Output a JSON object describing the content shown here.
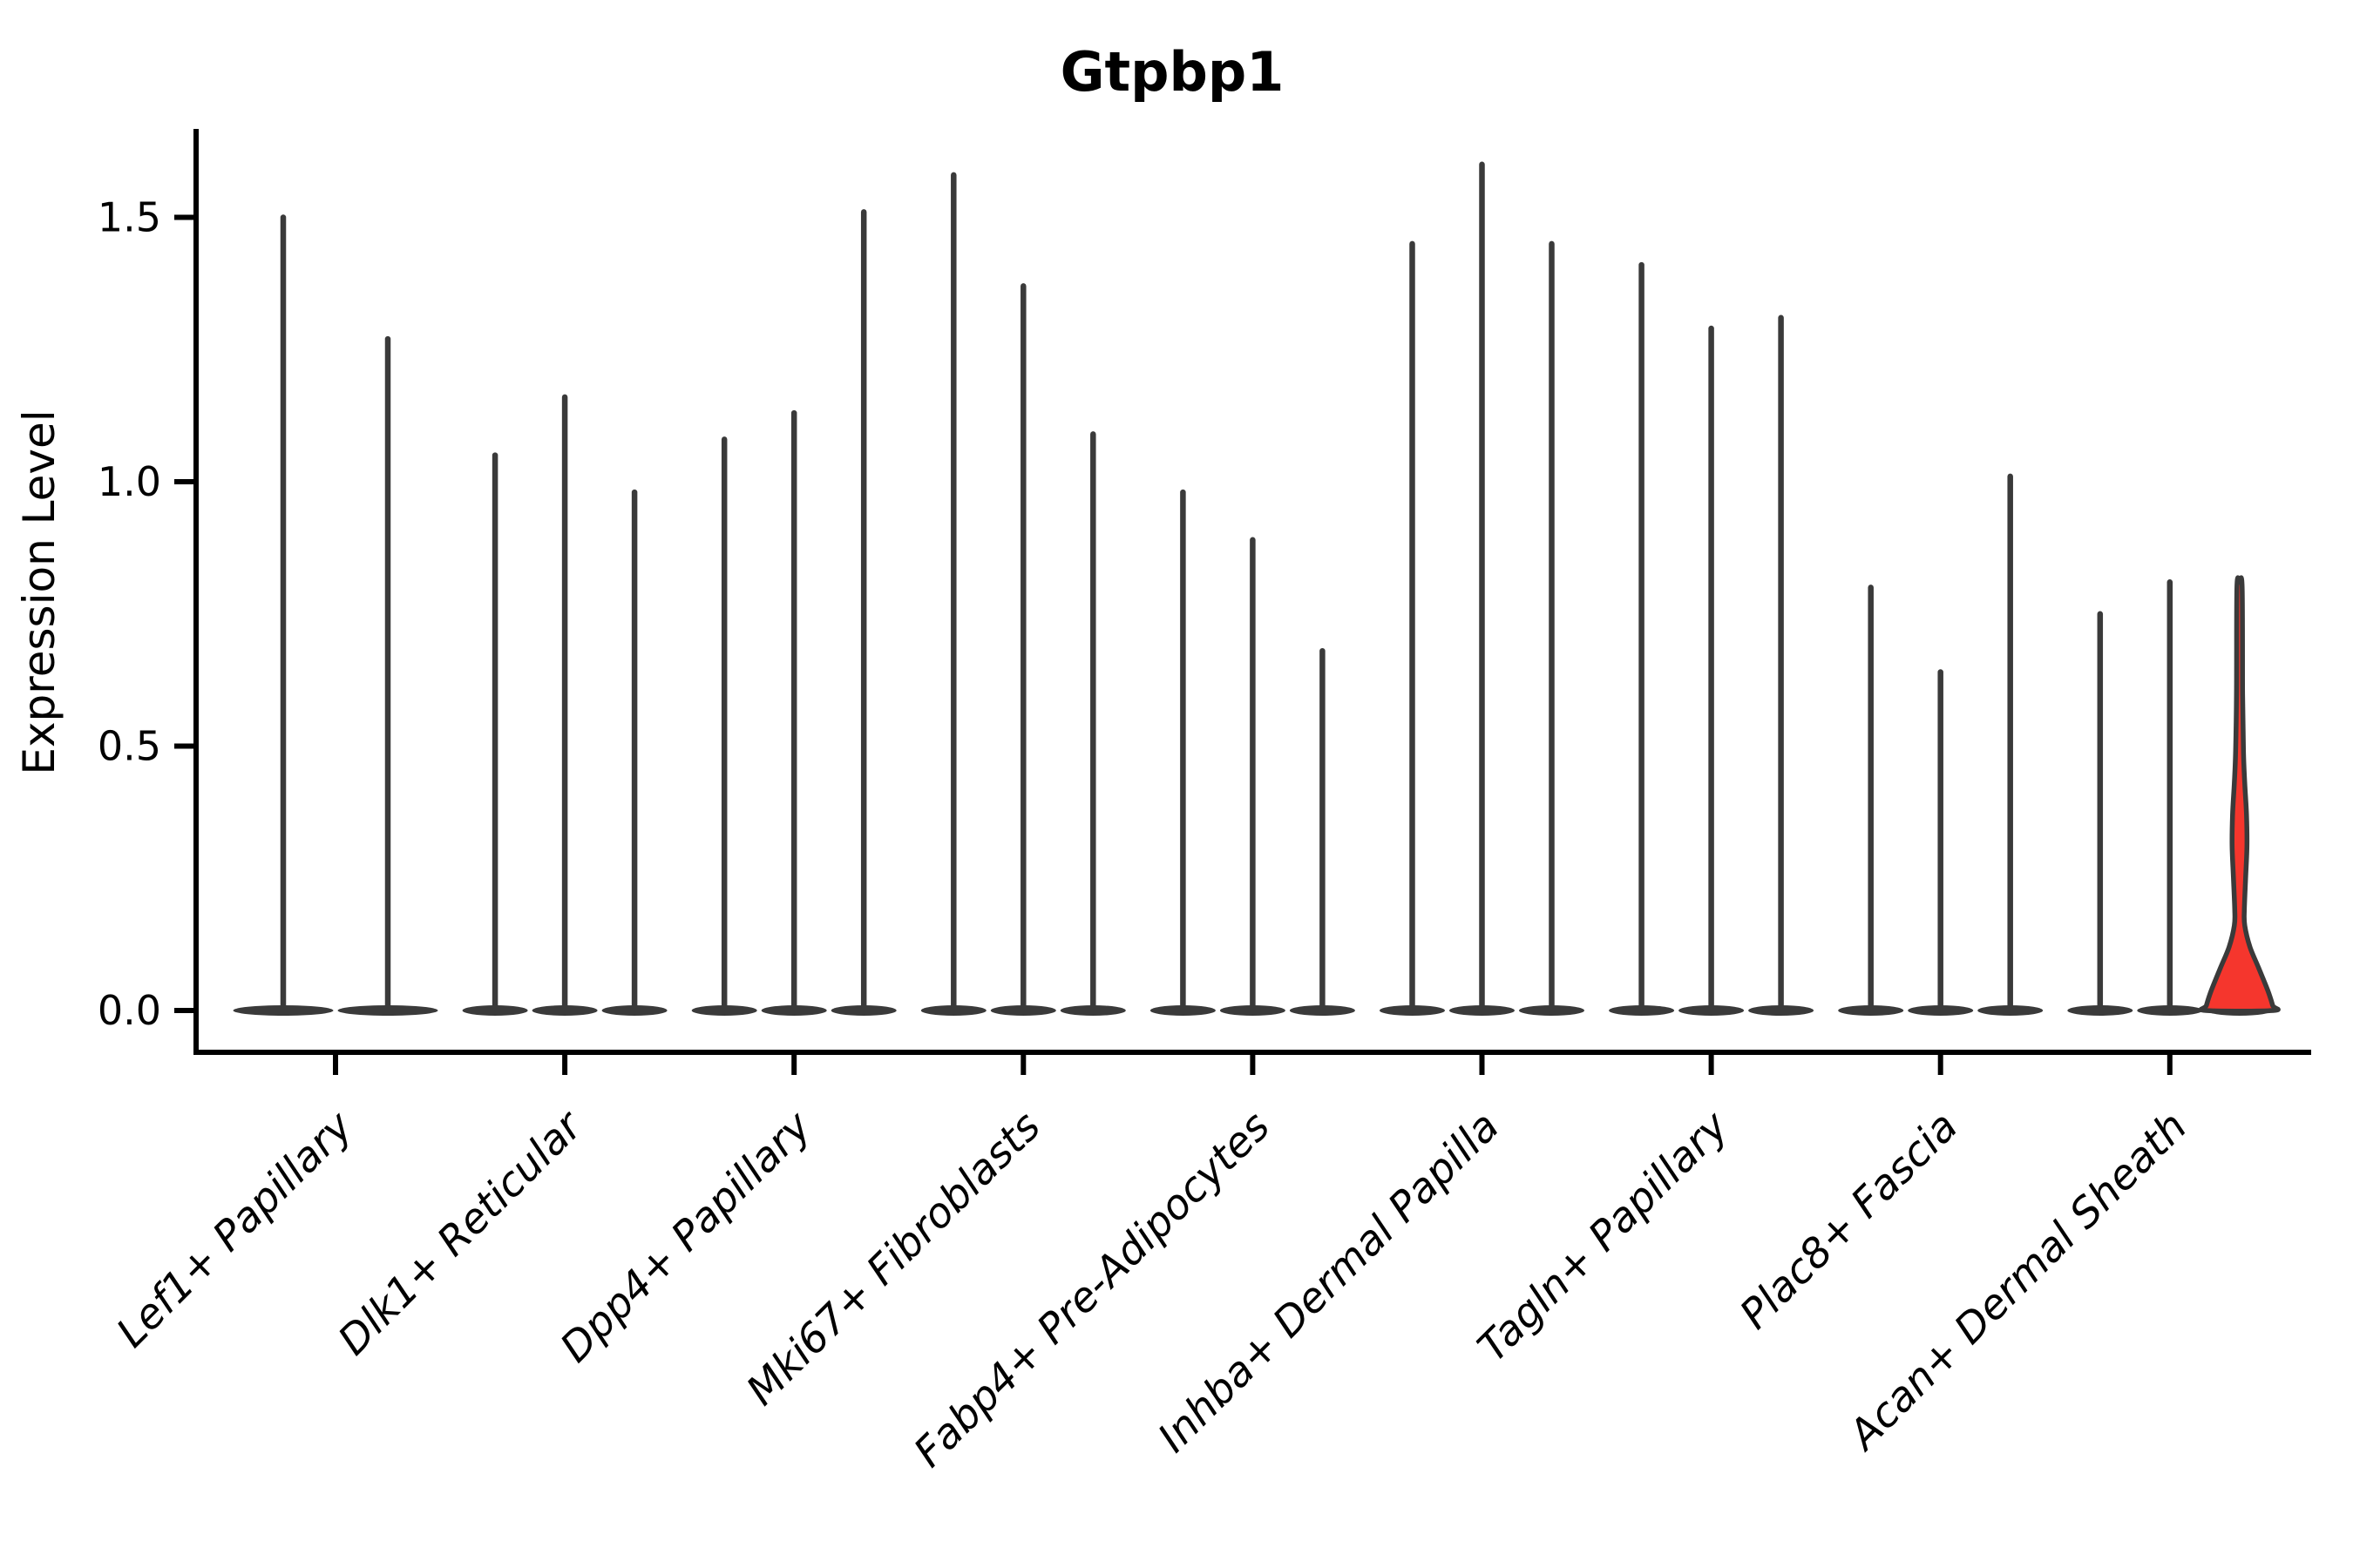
{
  "chart_data": {
    "type": "violin",
    "title": "Gtpbp1",
    "ylabel": "Expression Level",
    "xlabel": "",
    "ylim": [
      -0.08,
      1.67
    ],
    "yticks": [
      "0.0",
      "0.5",
      "1.0",
      "1.5"
    ],
    "ytick_values": [
      0.0,
      0.5,
      1.0,
      1.5
    ],
    "legend": "none",
    "grid": false,
    "colors": {
      "violin_stroke": "#3a3a3a",
      "spine": "#000000",
      "highlight_fill": "#f5362d",
      "background": "#ffffff"
    },
    "groups": [
      {
        "label": "Lef1+ Papillary",
        "violins": [
          {
            "max": 1.5
          },
          {
            "max": 1.27
          }
        ]
      },
      {
        "label": "Dlk1+ Reticular",
        "violins": [
          {
            "max": 1.05
          },
          {
            "max": 1.16
          },
          {
            "max": 0.98
          }
        ]
      },
      {
        "label": "Dpp4+ Papillary",
        "violins": [
          {
            "max": 1.08
          },
          {
            "max": 1.13
          },
          {
            "max": 1.51
          }
        ]
      },
      {
        "label": "Mki67+ Fibroblasts",
        "violins": [
          {
            "max": 1.58
          },
          {
            "max": 1.37
          },
          {
            "max": 1.09
          }
        ]
      },
      {
        "label": "Fabp4+ Pre-Adipocytes",
        "violins": [
          {
            "max": 0.98
          },
          {
            "max": 0.89
          },
          {
            "max": 0.68
          }
        ]
      },
      {
        "label": "Inhba+ Dermal Papilla",
        "violins": [
          {
            "max": 1.45
          },
          {
            "max": 1.6
          },
          {
            "max": 1.45
          }
        ]
      },
      {
        "label": "Tagln+ Papillary",
        "violins": [
          {
            "max": 1.41
          },
          {
            "max": 1.29
          },
          {
            "max": 1.31
          }
        ]
      },
      {
        "label": "Plac8+ Fascia",
        "violins": [
          {
            "max": 0.8
          },
          {
            "max": 0.64
          },
          {
            "max": 1.01
          }
        ]
      },
      {
        "label": "Acan+ Dermal Sheath",
        "violins": [
          {
            "max": 0.75
          },
          {
            "max": 0.81
          },
          {
            "max": 0.81,
            "highlight": true
          }
        ]
      }
    ]
  }
}
